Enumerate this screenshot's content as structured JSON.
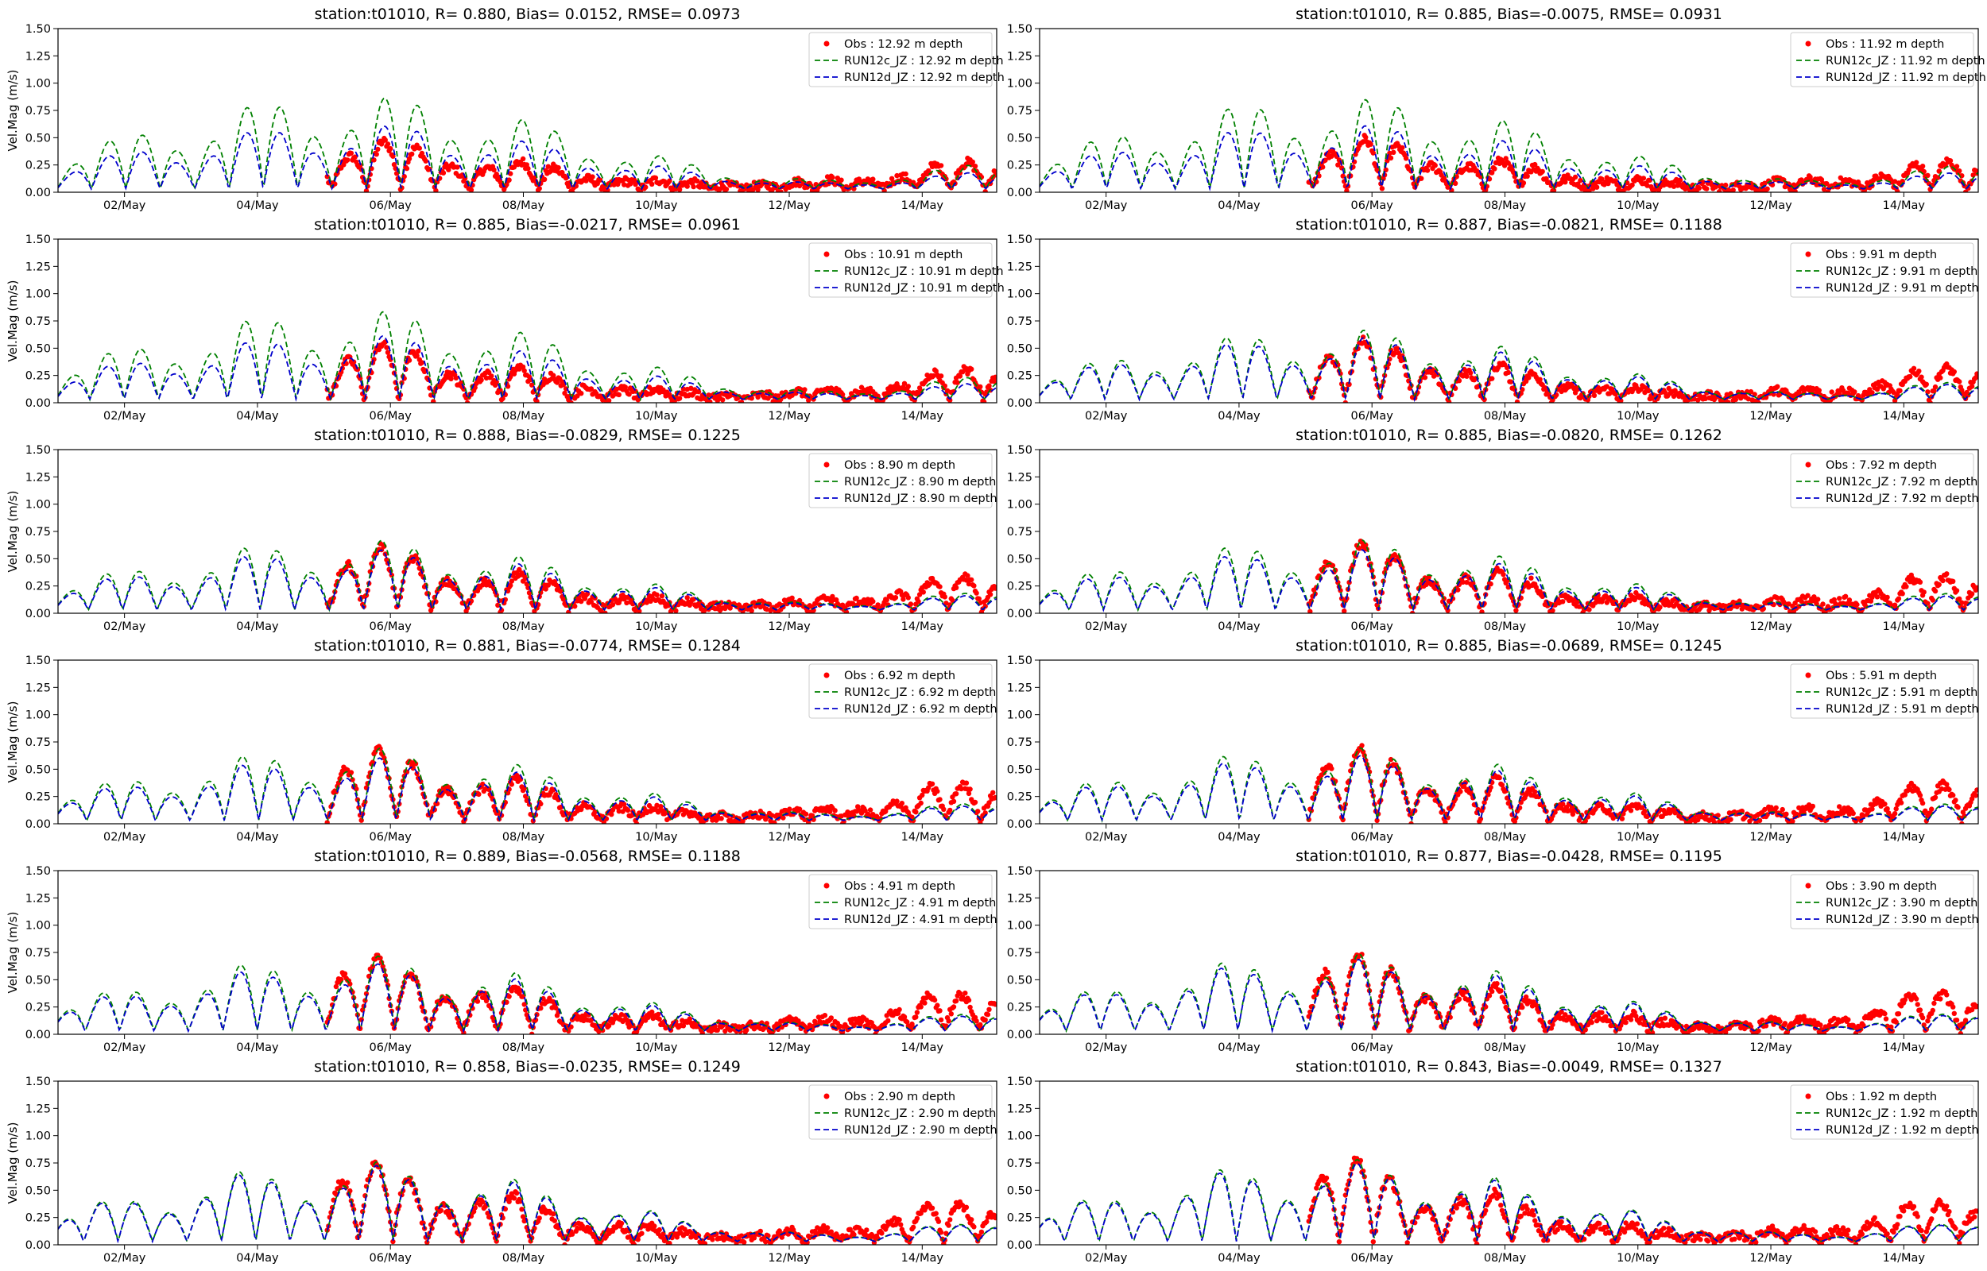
{
  "figure": {
    "x_tick_labels": [
      "02/May",
      "04/May",
      "06/May",
      "08/May",
      "10/May",
      "12/May",
      "14/May"
    ],
    "y_tick_labels": [
      "0.00",
      "0.25",
      "0.50",
      "0.75",
      "1.00",
      "1.25",
      "1.50"
    ]
  },
  "chart_data": [
    {
      "type": "line",
      "title": "station:t01010, R= 0.880, Bias= 0.0152, RMSE= 0.0973",
      "ylabel": "Vel.Mag (m/s)",
      "xlabel": "",
      "xlim": [
        "2021-05-01",
        "2021-05-15"
      ],
      "ylim": [
        0,
        1.5
      ],
      "obs_start": "05/May",
      "legend": [
        "Obs : 12.92 m depth",
        "RUN12c_JZ : 12.92 m depth",
        "RUN12d_JZ : 12.92 m depth"
      ],
      "model_c_peak": 0.88,
      "model_d_peak": 0.62,
      "obs_peak": 0.5
    },
    {
      "type": "line",
      "title": "station:t01010, R= 0.885, Bias=-0.0075, RMSE= 0.0931",
      "ylabel": "",
      "xlabel": "",
      "xlim": [
        "2021-05-01",
        "2021-05-15"
      ],
      "ylim": [
        0,
        1.5
      ],
      "obs_start": "05/May",
      "legend": [
        "Obs : 11.92 m depth",
        "RUN12c_JZ : 11.92 m depth",
        "RUN12d_JZ : 11.92 m depth"
      ],
      "model_c_peak": 0.86,
      "model_d_peak": 0.62,
      "obs_peak": 0.52
    },
    {
      "type": "line",
      "title": "station:t01010, R= 0.885, Bias=-0.0217, RMSE= 0.0961",
      "ylabel": "Vel.Mag (m/s)",
      "xlabel": "",
      "xlim": [
        "2021-05-01",
        "2021-05-15"
      ],
      "ylim": [
        0,
        1.5
      ],
      "obs_start": "05/May",
      "legend": [
        "Obs : 10.91 m depth",
        "RUN12c_JZ : 10.91 m depth",
        "RUN12d_JZ : 10.91 m depth"
      ],
      "model_c_peak": 0.84,
      "model_d_peak": 0.62,
      "obs_peak": 0.58
    },
    {
      "type": "line",
      "title": "station:t01010, R= 0.887, Bias=-0.0821, RMSE= 0.1188",
      "ylabel": "",
      "xlabel": "",
      "xlim": [
        "2021-05-01",
        "2021-05-15"
      ],
      "ylim": [
        0,
        1.5
      ],
      "obs_start": "05/May",
      "legend": [
        "Obs : 9.91 m depth",
        "RUN12c_JZ : 9.91 m depth",
        "RUN12d_JZ : 9.91 m depth"
      ],
      "model_c_peak": 0.66,
      "model_d_peak": 0.6,
      "obs_peak": 0.62
    },
    {
      "type": "line",
      "title": "station:t01010, R= 0.888, Bias=-0.0829, RMSE= 0.1225",
      "ylabel": "Vel.Mag (m/s)",
      "xlabel": "",
      "xlim": [
        "2021-05-01",
        "2021-05-15"
      ],
      "ylim": [
        0,
        1.5
      ],
      "obs_start": "05/May",
      "legend": [
        "Obs : 8.90 m depth",
        "RUN12c_JZ : 8.90 m depth",
        "RUN12d_JZ : 8.90 m depth"
      ],
      "model_c_peak": 0.66,
      "model_d_peak": 0.58,
      "obs_peak": 0.65
    },
    {
      "type": "line",
      "title": "station:t01010, R= 0.885, Bias=-0.0820, RMSE= 0.1262",
      "ylabel": "",
      "xlabel": "",
      "xlim": [
        "2021-05-01",
        "2021-05-15"
      ],
      "ylim": [
        0,
        1.5
      ],
      "obs_start": "05/May",
      "legend": [
        "Obs : 7.92 m depth",
        "RUN12c_JZ : 7.92 m depth",
        "RUN12d_JZ : 7.92 m depth"
      ],
      "model_c_peak": 0.66,
      "model_d_peak": 0.58,
      "obs_peak": 0.68
    },
    {
      "type": "line",
      "title": "station:t01010, R= 0.881, Bias=-0.0774, RMSE= 0.1284",
      "ylabel": "Vel.Mag (m/s)",
      "xlabel": "",
      "xlim": [
        "2021-05-01",
        "2021-05-15"
      ],
      "ylim": [
        0,
        1.5
      ],
      "obs_start": "05/May",
      "legend": [
        "Obs : 6.92 m depth",
        "RUN12c_JZ : 6.92 m depth",
        "RUN12d_JZ : 6.92 m depth"
      ],
      "model_c_peak": 0.68,
      "model_d_peak": 0.6,
      "obs_peak": 0.72
    },
    {
      "type": "line",
      "title": "station:t01010, R= 0.885, Bias=-0.0689, RMSE= 0.1245",
      "ylabel": "",
      "xlabel": "",
      "xlim": [
        "2021-05-01",
        "2021-05-15"
      ],
      "ylim": [
        0,
        1.5
      ],
      "obs_start": "05/May",
      "legend": [
        "Obs : 5.91 m depth",
        "RUN12c_JZ : 5.91 m depth",
        "RUN12d_JZ : 5.91 m depth"
      ],
      "model_c_peak": 0.68,
      "model_d_peak": 0.62,
      "obs_peak": 0.74
    },
    {
      "type": "line",
      "title": "station:t01010, R= 0.889, Bias=-0.0568, RMSE= 0.1188",
      "ylabel": "Vel.Mag (m/s)",
      "xlabel": "",
      "xlim": [
        "2021-05-01",
        "2021-05-15"
      ],
      "ylim": [
        0,
        1.5
      ],
      "obs_start": "05/May",
      "legend": [
        "Obs : 4.91 m depth",
        "RUN12c_JZ : 4.91 m depth",
        "RUN12d_JZ : 4.91 m depth"
      ],
      "model_c_peak": 0.7,
      "model_d_peak": 0.64,
      "obs_peak": 0.76
    },
    {
      "type": "line",
      "title": "station:t01010, R= 0.877, Bias=-0.0428, RMSE= 0.1195",
      "ylabel": "",
      "xlabel": "",
      "xlim": [
        "2021-05-01",
        "2021-05-15"
      ],
      "ylim": [
        0,
        1.5
      ],
      "obs_start": "05/May",
      "legend": [
        "Obs : 3.90 m depth",
        "RUN12c_JZ : 3.90 m depth",
        "RUN12d_JZ : 3.90 m depth"
      ],
      "model_c_peak": 0.72,
      "model_d_peak": 0.68,
      "obs_peak": 0.78
    },
    {
      "type": "line",
      "title": "station:t01010, R= 0.858, Bias=-0.0235, RMSE= 0.1249",
      "ylabel": "Vel.Mag (m/s)",
      "xlabel": "",
      "xlim": [
        "2021-05-01",
        "2021-05-15"
      ],
      "ylim": [
        0,
        1.5
      ],
      "obs_start": "05/May",
      "legend": [
        "Obs : 2.90 m depth",
        "RUN12c_JZ : 2.90 m depth",
        "RUN12d_JZ : 2.90 m depth"
      ],
      "model_c_peak": 0.74,
      "model_d_peak": 0.72,
      "obs_peak": 0.8
    },
    {
      "type": "line",
      "title": "station:t01010, R= 0.843, Bias=-0.0049, RMSE= 0.1327",
      "ylabel": "",
      "xlabel": "",
      "xlim": [
        "2021-05-01",
        "2021-05-15"
      ],
      "ylim": [
        0,
        1.5
      ],
      "obs_start": "05/May",
      "legend": [
        "Obs : 1.92 m depth",
        "RUN12c_JZ : 1.92 m depth",
        "RUN12d_JZ : 1.92 m depth"
      ],
      "model_c_peak": 0.76,
      "model_d_peak": 0.74,
      "obs_peak": 0.82
    }
  ],
  "colors": {
    "obs": "#ff0000",
    "run12c": "#008000",
    "run12d": "#0000cc",
    "axes": "#000000",
    "background": "#ffffff"
  }
}
